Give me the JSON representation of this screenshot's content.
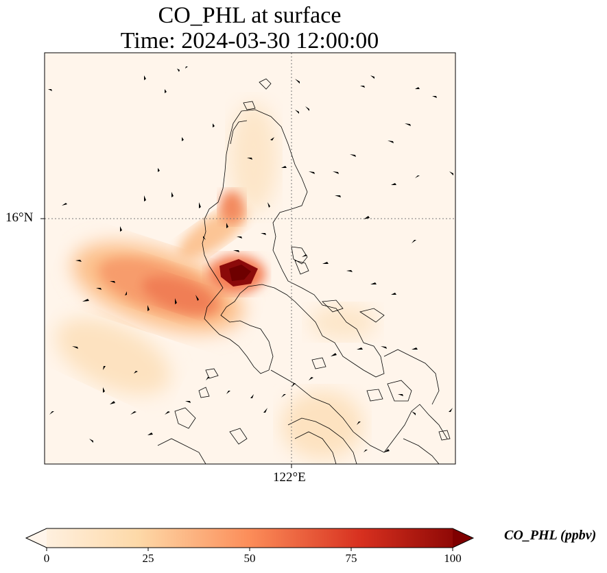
{
  "title": {
    "line1": "CO_PHL at surface",
    "line2": "Time: 2024-03-30 12:00:00"
  },
  "map": {
    "lat_label": "16°N",
    "lon_label": "122°E",
    "variable": "CO_PHL",
    "units": "ppbv"
  },
  "colorbar": {
    "label": "CO_PHL (ppbv)",
    "ticks": [
      "0",
      "25",
      "50",
      "75",
      "100"
    ],
    "colormap": [
      "#fff5eb",
      "#fdd9a8",
      "#fc8d59",
      "#d7301f",
      "#7f0000"
    ]
  },
  "colors": {
    "background": "#fff5eb",
    "coastline": "#000000",
    "gridline": "#777777"
  }
}
